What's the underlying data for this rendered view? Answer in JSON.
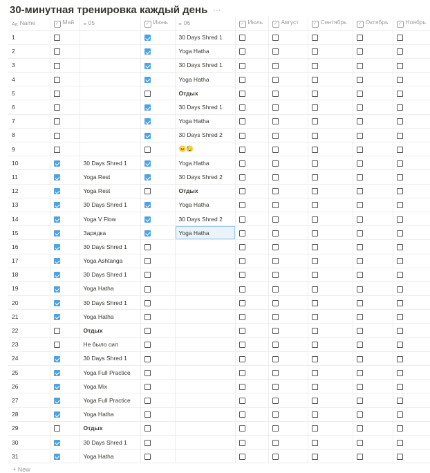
{
  "title": "30-минутная тренировка каждый день",
  "more": "···",
  "columns": [
    {
      "label": "Name",
      "icon": "text-title-icon"
    },
    {
      "label": "Май",
      "icon": "checkbox-icon"
    },
    {
      "label": "05",
      "icon": "text-lines-icon"
    },
    {
      "label": "Июнь",
      "icon": "checkbox-icon"
    },
    {
      "label": "06",
      "icon": "text-lines-icon"
    },
    {
      "label": "Июль",
      "icon": "checkbox-icon"
    },
    {
      "label": "Август",
      "icon": "checkbox-icon"
    },
    {
      "label": "Сентябрь",
      "icon": "checkbox-icon"
    },
    {
      "label": "Октябрь",
      "icon": "checkbox-icon"
    },
    {
      "label": "Ноябрь",
      "icon": "checkbox-icon"
    }
  ],
  "rows": [
    {
      "name": "1",
      "may": false,
      "d05": "",
      "june": true,
      "d06": "30 Days Shred 1"
    },
    {
      "name": "2",
      "may": false,
      "d05": "",
      "june": true,
      "d06": "Yoga Hatha"
    },
    {
      "name": "3",
      "may": false,
      "d05": "",
      "june": true,
      "d06": "30 Days Shred 1"
    },
    {
      "name": "4",
      "may": false,
      "d05": "",
      "june": true,
      "d06": "Yoga Hatha"
    },
    {
      "name": "5",
      "may": false,
      "d05": "",
      "june": false,
      "d06": "Отдых"
    },
    {
      "name": "6",
      "may": false,
      "d05": "",
      "june": true,
      "d06": "30 Days Shred 1"
    },
    {
      "name": "7",
      "may": false,
      "d05": "",
      "june": true,
      "d06": "Yoga Hatha"
    },
    {
      "name": "8",
      "may": false,
      "d05": "",
      "june": true,
      "d06": "30 Days Shred 2"
    },
    {
      "name": "9",
      "may": false,
      "d05": "",
      "june": false,
      "d06": "😑😓"
    },
    {
      "name": "10",
      "may": true,
      "d05": "30 Days Shred 1",
      "june": true,
      "d06": "Yoga Hatha"
    },
    {
      "name": "11",
      "may": true,
      "d05": "Yoga Rest",
      "june": true,
      "d06": "30 Days Shred 2"
    },
    {
      "name": "12",
      "may": true,
      "d05": "Yoga Rest",
      "june": false,
      "d06": "Отдых"
    },
    {
      "name": "13",
      "may": true,
      "d05": "30 Days Shred 1",
      "june": true,
      "d06": "Yoga Hatha"
    },
    {
      "name": "14",
      "may": true,
      "d05": "Yoga V Flow",
      "june": true,
      "d06": "30 Days Shred 2"
    },
    {
      "name": "15",
      "may": true,
      "d05": "Зарядка",
      "june": true,
      "d06": "Yoga Hatha",
      "selected": true
    },
    {
      "name": "16",
      "may": true,
      "d05": "30 Days Shred 1",
      "june": false,
      "d06": ""
    },
    {
      "name": "17",
      "may": true,
      "d05": "Yoga Ashtanga",
      "june": false,
      "d06": ""
    },
    {
      "name": "18",
      "may": true,
      "d05": "30 Days Shred 1",
      "june": false,
      "d06": ""
    },
    {
      "name": "19",
      "may": true,
      "d05": "Yoga Hatha",
      "june": false,
      "d06": ""
    },
    {
      "name": "20",
      "may": true,
      "d05": "30 Days Shred 1",
      "june": false,
      "d06": ""
    },
    {
      "name": "21",
      "may": true,
      "d05": "Yoga Hatha",
      "june": false,
      "d06": ""
    },
    {
      "name": "22",
      "may": false,
      "d05": "Отдых",
      "june": false,
      "d06": ""
    },
    {
      "name": "23",
      "may": false,
      "d05": "Не было сил",
      "june": false,
      "d06": ""
    },
    {
      "name": "24",
      "may": true,
      "d05": "30 Days Shred 1",
      "june": false,
      "d06": ""
    },
    {
      "name": "25",
      "may": true,
      "d05": "Yoga Full Practice",
      "june": false,
      "d06": ""
    },
    {
      "name": "26",
      "may": true,
      "d05": "Yoga Mix",
      "june": false,
      "d06": ""
    },
    {
      "name": "27",
      "may": true,
      "d05": "Yoga Full Practice",
      "june": false,
      "d06": ""
    },
    {
      "name": "28",
      "may": true,
      "d05": "Yoga Hatha",
      "june": false,
      "d06": ""
    },
    {
      "name": "29",
      "may": false,
      "d05": "Отдых",
      "june": false,
      "d06": ""
    },
    {
      "name": "30",
      "may": true,
      "d05": "30 Days Shred 1",
      "june": false,
      "d06": ""
    },
    {
      "name": "31",
      "may": true,
      "d05": "Yoga Hatha",
      "june": false,
      "d06": ""
    }
  ],
  "bold_value": "Отдых",
  "new_label": "+ New",
  "colors": {
    "accent": "#4ea3e6",
    "selected_bg": "#e8f3fb"
  }
}
